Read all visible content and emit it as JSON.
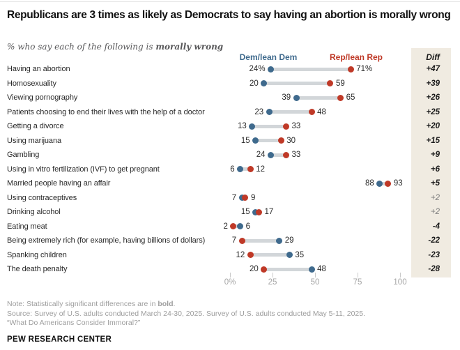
{
  "header": {
    "title": "Republicans are 3 times as likely as Democrats to say having an abortion is morally wrong",
    "subtitle_prefix": "% who say each of the following is ",
    "subtitle_bold": "morally wrong"
  },
  "legend": {
    "dem": "Dem/lean Dem",
    "rep": "Rep/lean Rep"
  },
  "diff_column": {
    "header": "Diff"
  },
  "colors": {
    "dem_blue": "#3f6a8d",
    "rep_red": "#bf3927",
    "bar_gray": "#d2d6d9",
    "diff_panel_beige": "#f0ebe1",
    "note_gray": "#9d9d9d",
    "axis_gray": "#a6a6a6"
  },
  "chart_data": {
    "type": "scatter",
    "variant": "dumbbell-dot-plot",
    "title": "Republicans are 3 times as likely as Democrats to say having an abortion is morally wrong",
    "subtitle": "% who say each of the following is morally wrong",
    "xlabel": "",
    "ylabel": "",
    "xlim": [
      0,
      100
    ],
    "x_tick_values": [
      0,
      25,
      50,
      75,
      100
    ],
    "x_tick_labels": [
      "0%",
      "25",
      "50",
      "75",
      "100"
    ],
    "legend_position": "top",
    "grid": false,
    "categories": [
      "Having an abortion",
      "Homosexuality",
      "Viewing pornography",
      "Patients choosing to end their lives with the help of a doctor",
      "Getting a divorce",
      "Using marijuana",
      "Gambling",
      "Using in vitro fertilization (IVF) to get pregnant",
      "Married people having an affair",
      "Using contraceptives",
      "Drinking alcohol",
      "Eating meat",
      "Being extremely rich (for example, having billions of dollars)",
      "Spanking children",
      "The death penalty"
    ],
    "series": [
      {
        "name": "Dem/lean Dem",
        "color": "#3f6a8d",
        "values": [
          24,
          20,
          39,
          23,
          13,
          15,
          24,
          6,
          88,
          7,
          15,
          6,
          29,
          35,
          48
        ]
      },
      {
        "name": "Rep/lean Rep",
        "color": "#bf3927",
        "values": [
          71,
          59,
          65,
          48,
          33,
          30,
          33,
          12,
          93,
          9,
          17,
          2,
          7,
          12,
          20
        ]
      }
    ],
    "points": [
      {
        "category": "Having an abortion",
        "dem": 24,
        "rep": 71,
        "dem_label": "24%",
        "rep_label": "71%",
        "diff": "+47",
        "significant": true
      },
      {
        "category": "Homosexuality",
        "dem": 20,
        "rep": 59,
        "dem_label": "20",
        "rep_label": "59",
        "diff": "+39",
        "significant": true
      },
      {
        "category": "Viewing pornography",
        "dem": 39,
        "rep": 65,
        "dem_label": "39",
        "rep_label": "65",
        "diff": "+26",
        "significant": true
      },
      {
        "category": "Patients choosing to end their lives with the help of a doctor",
        "dem": 23,
        "rep": 48,
        "dem_label": "23",
        "rep_label": "48",
        "diff": "+25",
        "significant": true
      },
      {
        "category": "Getting a divorce",
        "dem": 13,
        "rep": 33,
        "dem_label": "13",
        "rep_label": "33",
        "diff": "+20",
        "significant": true
      },
      {
        "category": "Using marijuana",
        "dem": 15,
        "rep": 30,
        "dem_label": "15",
        "rep_label": "30",
        "diff": "+15",
        "significant": true
      },
      {
        "category": "Gambling",
        "dem": 24,
        "rep": 33,
        "dem_label": "24",
        "rep_label": "33",
        "diff": "+9",
        "significant": true
      },
      {
        "category": "Using in vitro fertilization (IVF) to get pregnant",
        "dem": 6,
        "rep": 12,
        "dem_label": "6",
        "rep_label": "12",
        "diff": "+6",
        "significant": true
      },
      {
        "category": "Married people having an affair",
        "dem": 88,
        "rep": 93,
        "dem_label": "88",
        "rep_label": "93",
        "diff": "+5",
        "significant": true
      },
      {
        "category": "Using contraceptives",
        "dem": 7,
        "rep": 9,
        "dem_label": "7",
        "rep_label": "9",
        "diff": "+2",
        "significant": false
      },
      {
        "category": "Drinking alcohol",
        "dem": 15,
        "rep": 17,
        "dem_label": "15",
        "rep_label": "17",
        "diff": "+2",
        "significant": false
      },
      {
        "category": "Eating meat",
        "dem": 6,
        "rep": 2,
        "dem_label": "6",
        "rep_label": "2",
        "diff": "-4",
        "significant": true
      },
      {
        "category": "Being extremely rich (for example, having billions of dollars)",
        "dem": 29,
        "rep": 7,
        "dem_label": "29",
        "rep_label": "7",
        "diff": "-22",
        "significant": true
      },
      {
        "category": "Spanking children",
        "dem": 35,
        "rep": 12,
        "dem_label": "35",
        "rep_label": "12",
        "diff": "-23",
        "significant": true
      },
      {
        "category": "The death penalty",
        "dem": 48,
        "rep": 20,
        "dem_label": "48",
        "rep_label": "20",
        "diff": "-28",
        "significant": true
      }
    ]
  },
  "footer": {
    "note_prefix": "Note: Statistically significant differences are in ",
    "note_bold": "bold",
    "note_suffix": ".",
    "source": "Source: Survey of U.S. adults conducted March 24-30, 2025. Survey of U.S. adults conducted May 5-11, 2025.",
    "quote": "“What Do Americans Consider Immoral?”",
    "org": "PEW RESEARCH CENTER"
  }
}
